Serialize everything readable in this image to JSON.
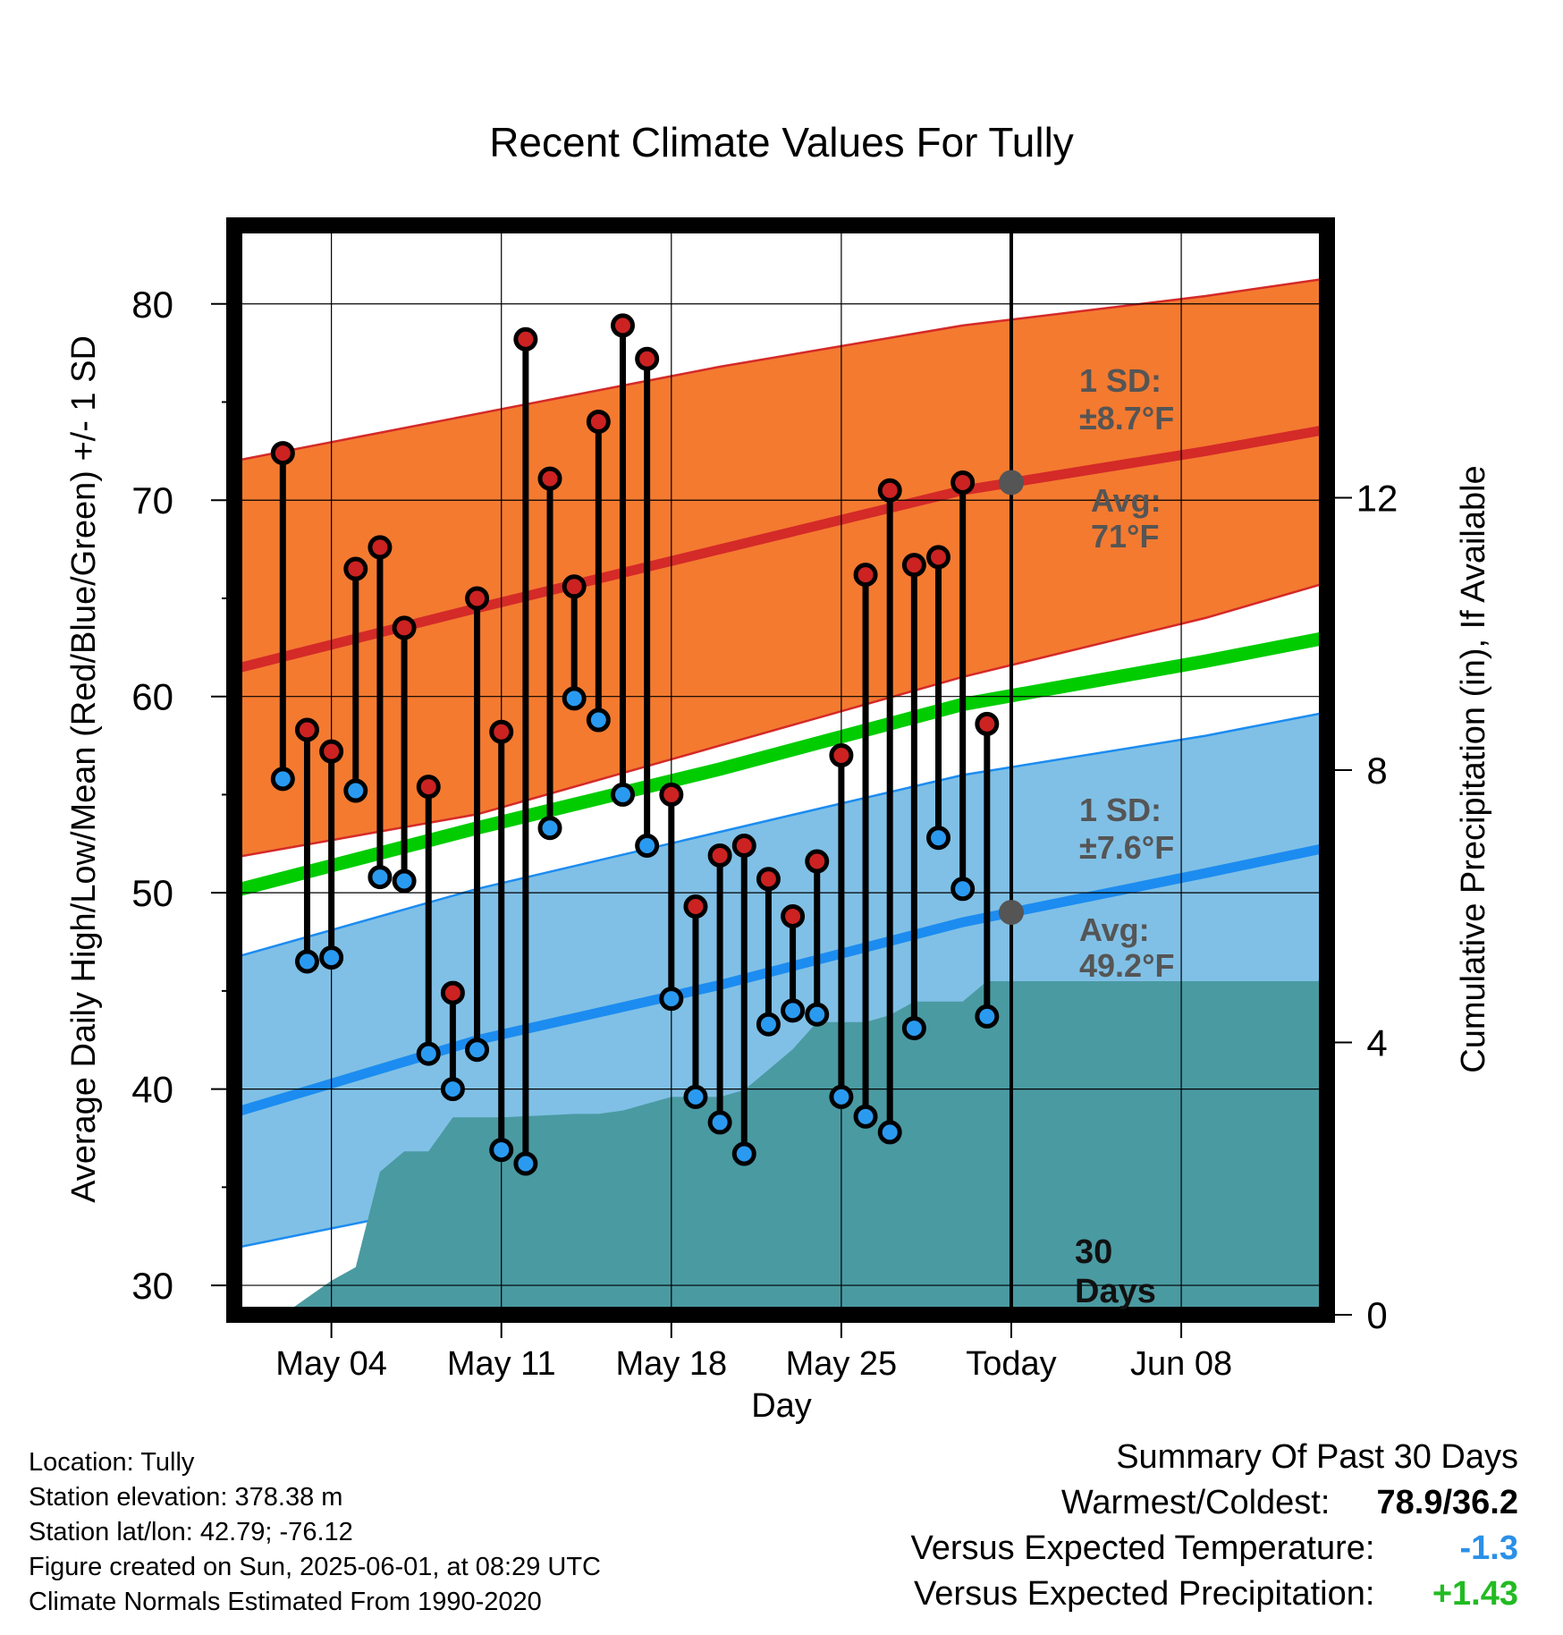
{
  "chart_data": {
    "type": "line",
    "title": "Recent Climate Values For Tully",
    "xlabel": "Day",
    "ylabel": "Average Daily High/Low/Mean (Red/Blue/Green) +/- 1 SD",
    "y2label": "Cumulative Precipitation (in), If Available",
    "ylim": [
      28.5,
      84
    ],
    "y2lim": [
      0,
      16
    ],
    "xlim": [
      "2025-04-30",
      "2025-06-14"
    ],
    "y_ticks": [
      "80",
      "70",
      "60",
      "50",
      "40",
      "30"
    ],
    "y2_ticks": [
      "12",
      "8",
      "4",
      "0"
    ],
    "x_ticks": [
      {
        "date": "2025-05-04",
        "label": "May 04"
      },
      {
        "date": "2025-05-11",
        "label": "May 11"
      },
      {
        "date": "2025-05-18",
        "label": "May 18"
      },
      {
        "date": "2025-05-25",
        "label": "May 25"
      },
      {
        "date": "2025-06-01",
        "label": "Today"
      },
      {
        "date": "2025-06-08",
        "label": "Jun 08"
      }
    ],
    "grid": true,
    "today": "2025-06-01",
    "daily": {
      "dates": [
        "2025-05-02",
        "2025-05-03",
        "2025-05-04",
        "2025-05-05",
        "2025-05-06",
        "2025-05-07",
        "2025-05-08",
        "2025-05-09",
        "2025-05-10",
        "2025-05-11",
        "2025-05-12",
        "2025-05-13",
        "2025-05-14",
        "2025-05-15",
        "2025-05-16",
        "2025-05-17",
        "2025-05-18",
        "2025-05-19",
        "2025-05-20",
        "2025-05-21",
        "2025-05-22",
        "2025-05-23",
        "2025-05-24",
        "2025-05-25",
        "2025-05-26",
        "2025-05-27",
        "2025-05-28",
        "2025-05-29",
        "2025-05-30",
        "2025-05-31"
      ],
      "high": [
        72.4,
        58.3,
        57.2,
        66.5,
        67.6,
        63.5,
        55.4,
        44.9,
        65.0,
        58.2,
        78.2,
        71.1,
        65.6,
        74.0,
        78.9,
        77.2,
        55.0,
        49.3,
        51.9,
        52.4,
        50.7,
        48.8,
        51.6,
        57.0,
        66.2,
        70.5,
        66.7,
        67.1,
        70.9,
        58.6
      ],
      "low": [
        55.8,
        46.5,
        46.7,
        55.2,
        50.8,
        50.6,
        41.8,
        40.0,
        42.0,
        36.9,
        36.2,
        53.3,
        59.9,
        58.8,
        55.0,
        52.4,
        44.6,
        39.6,
        38.3,
        36.7,
        43.3,
        44.0,
        43.8,
        39.6,
        38.6,
        37.8,
        43.1,
        52.8,
        50.2,
        43.7
      ]
    },
    "normals": {
      "dates": [
        "2025-04-30",
        "2025-05-10",
        "2025-05-20",
        "2025-05-30",
        "2025-06-09",
        "2025-06-14"
      ],
      "avg_high": [
        61.4,
        64.5,
        67.5,
        70.5,
        72.5,
        73.6
      ],
      "avg_low": [
        38.8,
        42.5,
        45.3,
        48.5,
        51.0,
        52.3
      ],
      "avg_mean": [
        50.1,
        53.3,
        56.3,
        59.6,
        61.8,
        63.0
      ],
      "high_sd_upper": [
        72.0,
        74.4,
        76.8,
        78.9,
        80.4,
        81.3
      ],
      "high_sd_lower": [
        51.8,
        54.0,
        57.5,
        61.0,
        64.0,
        65.8
      ],
      "low_sd_upper": [
        46.7,
        50.2,
        53.1,
        56.0,
        58.0,
        59.2
      ],
      "low_sd_lower": [
        31.9,
        34.4,
        37.1,
        40.6,
        43.5,
        45.6
      ]
    },
    "precip": {
      "dates": [
        "2025-04-30",
        "2025-05-01",
        "2025-05-02",
        "2025-05-04",
        "2025-05-05",
        "2025-05-06",
        "2025-05-07",
        "2025-05-08",
        "2025-05-09",
        "2025-05-11",
        "2025-05-14",
        "2025-05-15",
        "2025-05-16",
        "2025-05-17",
        "2025-05-18",
        "2025-05-19",
        "2025-05-20",
        "2025-05-21",
        "2025-05-22",
        "2025-05-23",
        "2025-05-24",
        "2025-05-25",
        "2025-05-26",
        "2025-05-27",
        "2025-05-28",
        "2025-05-29",
        "2025-05-30",
        "2025-05-31",
        "2025-06-01",
        "2025-06-14"
      ],
      "cumulative": [
        0,
        0,
        0,
        0.5,
        0.7,
        2.1,
        2.4,
        2.4,
        2.9,
        2.9,
        2.95,
        2.95,
        3.0,
        3.1,
        3.2,
        3.2,
        3.2,
        3.3,
        3.6,
        3.9,
        4.3,
        4.3,
        4.3,
        4.4,
        4.6,
        4.6,
        4.6,
        4.9,
        4.9,
        4.9
      ]
    },
    "annotations": {
      "high_sd": "1 SD:",
      "high_sd_value": "±8.7°F",
      "high_avg": "Avg:",
      "high_avg_value": "71°F",
      "low_sd": "1 SD:",
      "low_sd_value": "±7.6°F",
      "low_avg": "Avg:",
      "low_avg_value": "49.2°F",
      "days_count": "30",
      "days_word": "Days"
    },
    "colors": {
      "high_band": "#f47a30",
      "high_line": "#d42a28",
      "low_band": "#80c0e6",
      "low_line": "#1c8cf0",
      "mean_line": "#00cc00",
      "precip": "#4a9aa2",
      "high_marker": "#cc2222",
      "low_marker": "#2a9af0",
      "annotation": "#555555"
    }
  },
  "info": {
    "location": "Location: Tully",
    "elevation": "Station elevation: 378.38 m",
    "latlon": "Station lat/lon: 42.79; -76.12",
    "created": "Figure created on Sun, 2025-06-01, at 08:29 UTC",
    "normals": "Climate Normals Estimated From 1990-2020"
  },
  "summary": {
    "title": "Summary Of Past 30 Days",
    "warmest_label": "Warmest/Coldest:",
    "warmest_value": "78.9/36.2",
    "temp_label": "Versus Expected Temperature:",
    "temp_value": "-1.3",
    "temp_color": "#2a90e8",
    "precip_label": "Versus Expected Precipitation:",
    "precip_value": "+1.43",
    "precip_color": "#22bb22"
  }
}
